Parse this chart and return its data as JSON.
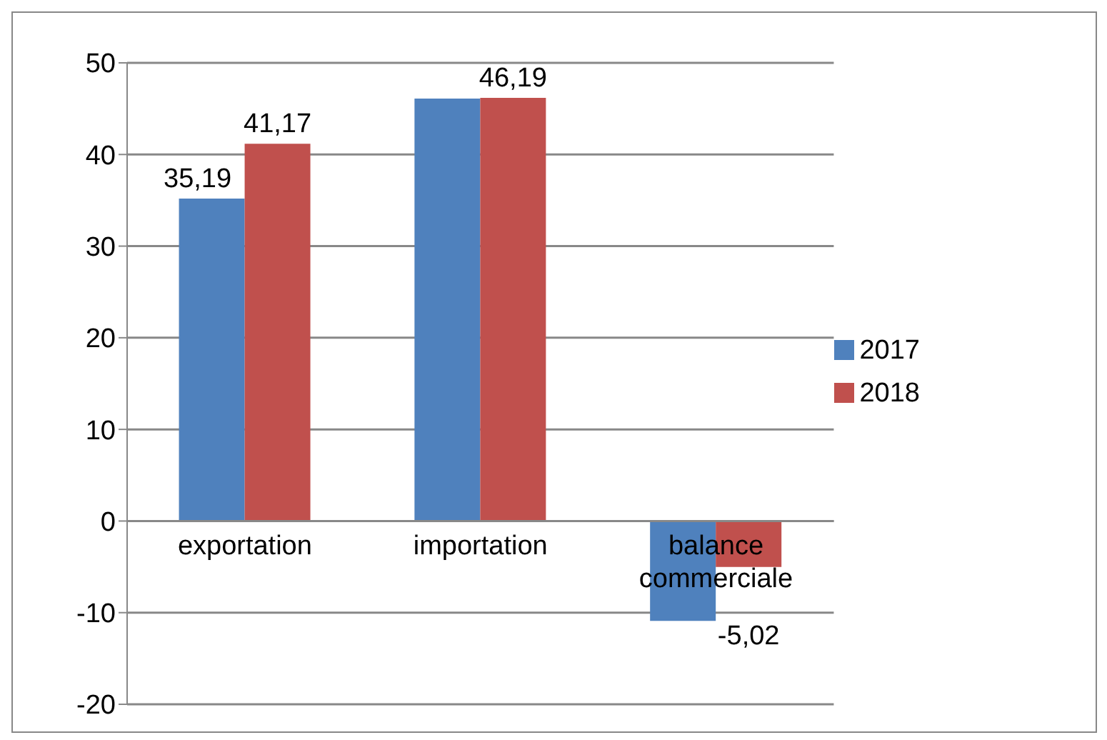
{
  "chart_data": {
    "type": "bar",
    "categories": [
      "exportation",
      "importation",
      "balance commerciale"
    ],
    "series": [
      {
        "name": "2017",
        "color": "#4f81bd",
        "values": [
          35.19,
          46.1,
          -10.9
        ],
        "value_labels": [
          "35,19",
          null,
          null
        ]
      },
      {
        "name": "2018",
        "color": "#c0504d",
        "values": [
          41.17,
          46.19,
          -5.02
        ],
        "value_labels": [
          "41,17",
          "46,19",
          "-5,02"
        ]
      }
    ],
    "ylim": [
      -20,
      50
    ],
    "yticks": [
      -20,
      -10,
      0,
      10,
      20,
      30,
      40,
      50
    ],
    "grid": "y",
    "legend": "right"
  }
}
